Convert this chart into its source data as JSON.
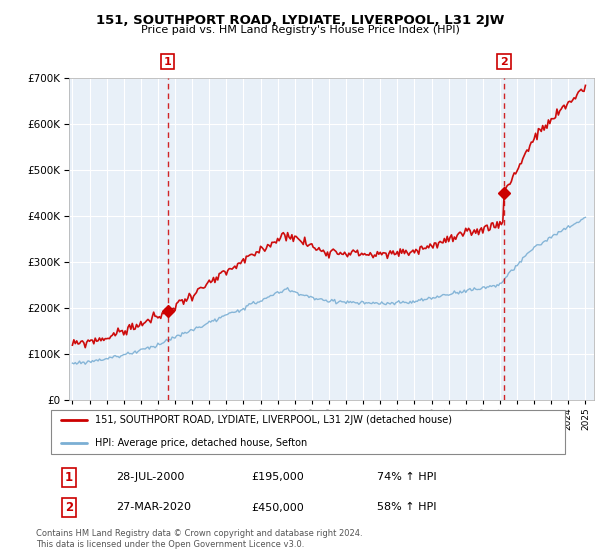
{
  "title": "151, SOUTHPORT ROAD, LYDIATE, LIVERPOOL, L31 2JW",
  "subtitle": "Price paid vs. HM Land Registry's House Price Index (HPI)",
  "legend_line1": "151, SOUTHPORT ROAD, LYDIATE, LIVERPOOL, L31 2JW (detached house)",
  "legend_line2": "HPI: Average price, detached house, Sefton",
  "annotation1": {
    "num": "1",
    "date": "28-JUL-2000",
    "price": "£195,000",
    "hpi": "74% ↑ HPI"
  },
  "annotation2": {
    "num": "2",
    "date": "27-MAR-2020",
    "price": "£450,000",
    "hpi": "58% ↑ HPI"
  },
  "footer": "Contains HM Land Registry data © Crown copyright and database right 2024.\nThis data is licensed under the Open Government Licence v3.0.",
  "sale1_year": 2000.57,
  "sale1_price": 195000,
  "sale2_year": 2020.23,
  "sale2_price": 450000,
  "red_color": "#cc0000",
  "blue_color": "#7bafd4",
  "bg_color": "#e8f0f8",
  "ylim": [
    0,
    700000
  ],
  "xlim_start": 1994.8,
  "xlim_end": 2025.5
}
